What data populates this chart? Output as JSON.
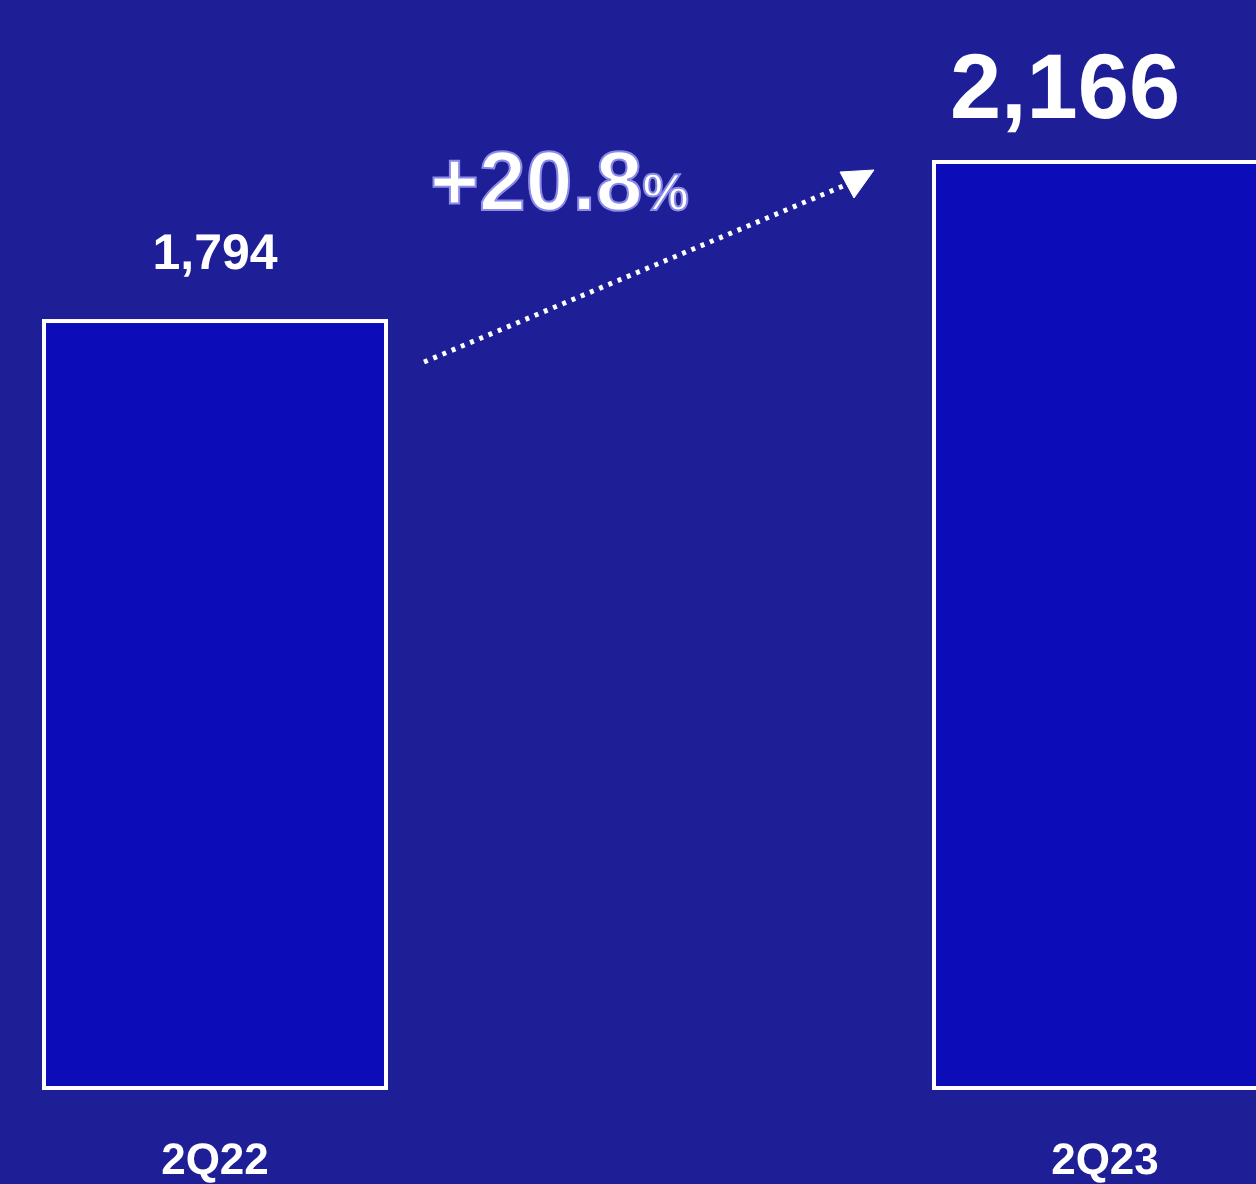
{
  "chart_data": {
    "type": "bar",
    "categories": [
      "2Q22",
      "2Q23"
    ],
    "values": [
      1794,
      2166
    ],
    "color": "#0c0cb8",
    "value_labels": [
      "1,794",
      "2,166"
    ],
    "annotations": [
      "+20.8%"
    ]
  }
}
